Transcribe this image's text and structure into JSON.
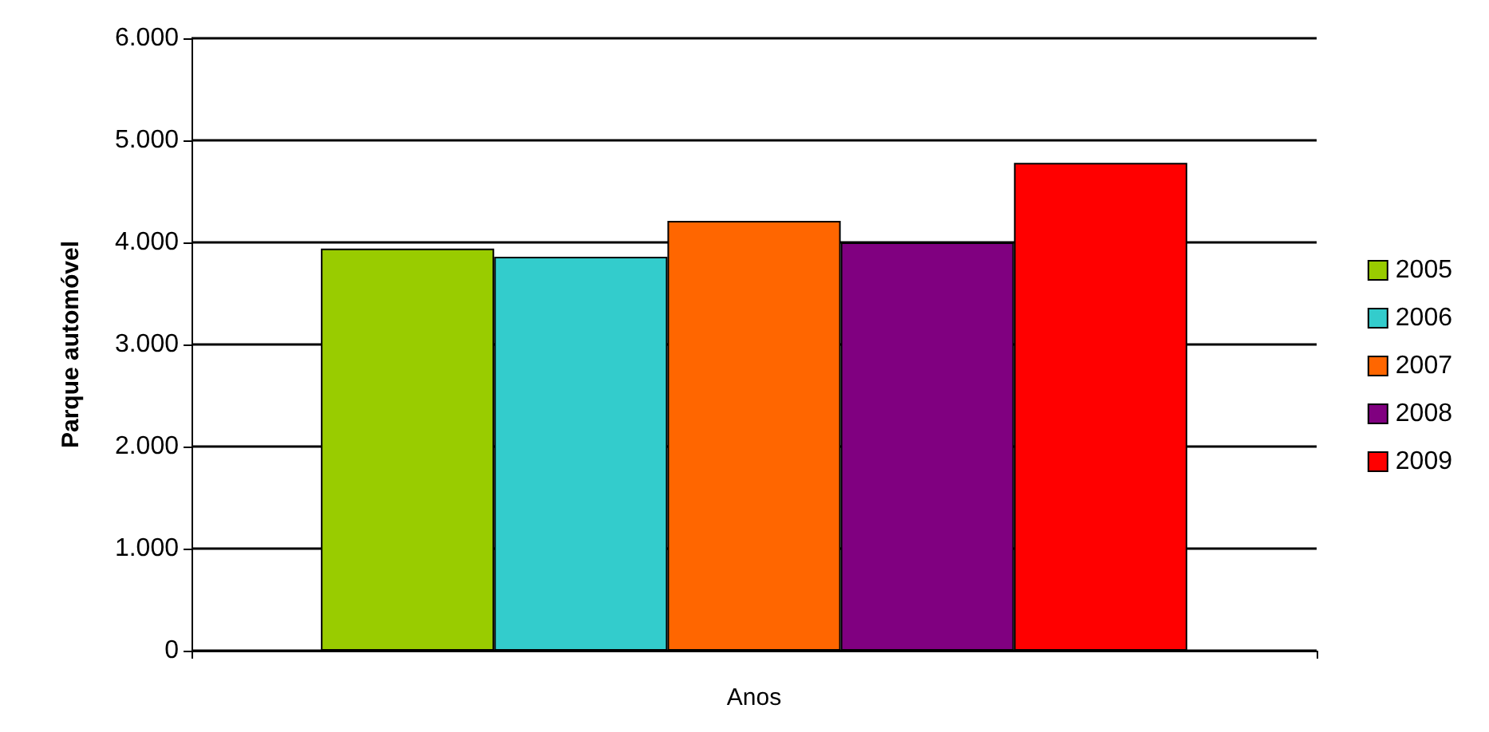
{
  "chart_data": {
    "type": "bar",
    "xlabel": "Anos",
    "ylabel": "Parque automóvel",
    "categories": [
      null
    ],
    "series": [
      {
        "name": "2005",
        "color": "#99cc00",
        "values": [
          3940
        ]
      },
      {
        "name": "2006",
        "color": "#33cccc",
        "values": [
          3860
        ]
      },
      {
        "name": "2007",
        "color": "#ff6600",
        "values": [
          4210
        ]
      },
      {
        "name": "2008",
        "color": "#800080",
        "values": [
          4000
        ]
      },
      {
        "name": "2009",
        "color": "#ff0000",
        "values": [
          4780
        ]
      }
    ],
    "ylim": [
      0,
      6000
    ],
    "yticks": [
      {
        "value": 0,
        "label": "0"
      },
      {
        "value": 1000,
        "label": "1.000"
      },
      {
        "value": 2000,
        "label": "2.000"
      },
      {
        "value": 3000,
        "label": "3.000"
      },
      {
        "value": 4000,
        "label": "4.000"
      },
      {
        "value": 5000,
        "label": "5.000"
      },
      {
        "value": 6000,
        "label": "6.000"
      }
    ],
    "grid": "y",
    "legend": "right"
  }
}
